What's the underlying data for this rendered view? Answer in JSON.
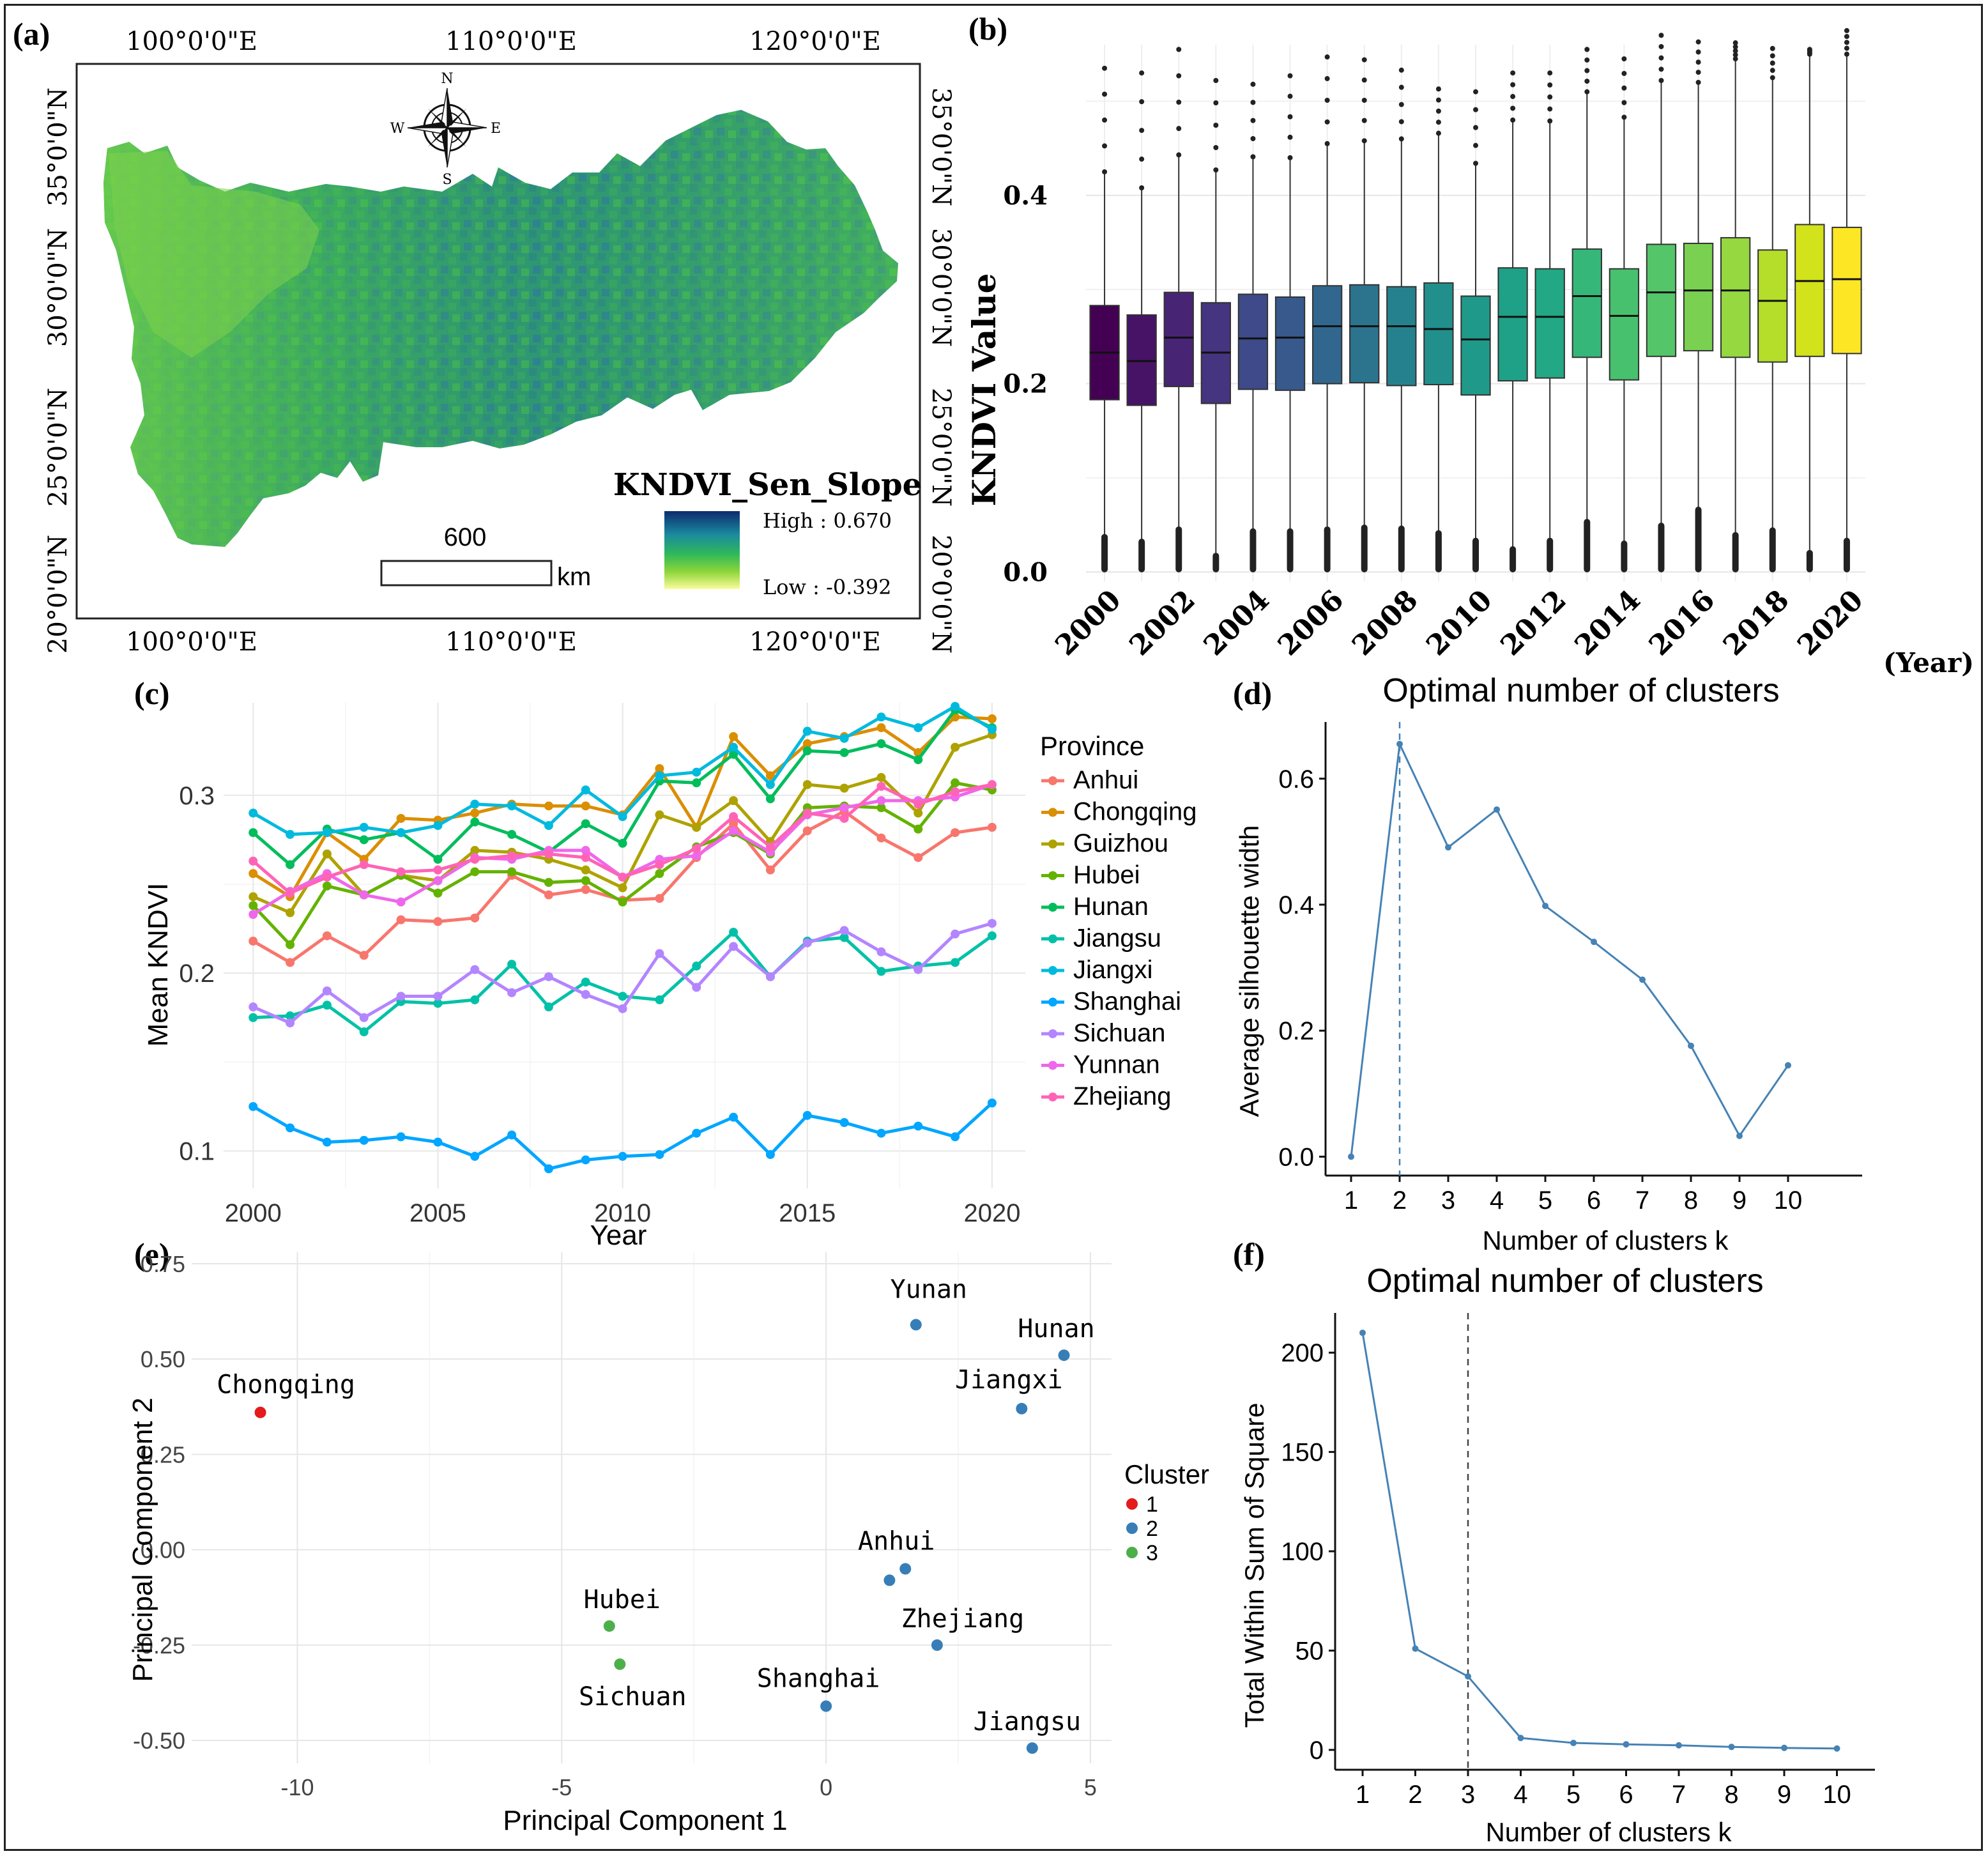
{
  "panels": {
    "a": "(a)",
    "b": "(b)",
    "c": "(c)",
    "d": "(d)",
    "e": "(e)",
    "f": "(f)"
  },
  "map": {
    "lon_labels": [
      "100°0'0\"E",
      "110°0'0\"E",
      "120°0'0\"E"
    ],
    "lat_labels": [
      "35°0'0\"N",
      "30°0'0\"N",
      "25°0'0\"N",
      "20°0'0\"N"
    ],
    "compass": {
      "n": "N",
      "s": "S",
      "e": "E",
      "w": "W"
    },
    "legend_title": "KNDVI_Sen_Slope",
    "legend_high": "High : 0.670",
    "legend_low": "Low : -0.392",
    "scale_value": "600",
    "scale_unit": "km",
    "colors": {
      "high": "#0d2b6e",
      "mid_high": "#1a8a9e",
      "mid": "#2fb85a",
      "mid_low": "#8fd63a",
      "low": "#fbfc9c"
    }
  },
  "chart_data": [
    {
      "id": "b",
      "type": "box",
      "ylabel": "KNDVI Value",
      "xlabel": "(Year)",
      "yticks": [
        "0.0",
        "0.2",
        "0.4"
      ],
      "ylim": [
        -0.01,
        0.56
      ],
      "x_tick_labels": [
        "2000",
        "2002",
        "2004",
        "2006",
        "2008",
        "2010",
        "2012",
        "2014",
        "2016",
        "2018",
        "2020"
      ],
      "years": [
        2000,
        2001,
        2002,
        2003,
        2004,
        2005,
        2006,
        2007,
        2008,
        2009,
        2010,
        2011,
        2012,
        2013,
        2014,
        2015,
        2016,
        2017,
        2018,
        2019,
        2020
      ],
      "q1": [
        0.183,
        0.177,
        0.197,
        0.179,
        0.194,
        0.193,
        0.2,
        0.201,
        0.198,
        0.199,
        0.188,
        0.203,
        0.206,
        0.228,
        0.204,
        0.229,
        0.235,
        0.228,
        0.223,
        0.229,
        0.232
      ],
      "median": [
        0.233,
        0.224,
        0.249,
        0.233,
        0.248,
        0.249,
        0.261,
        0.261,
        0.261,
        0.258,
        0.247,
        0.271,
        0.271,
        0.293,
        0.272,
        0.297,
        0.299,
        0.299,
        0.288,
        0.309,
        0.311
      ],
      "q3": [
        0.283,
        0.273,
        0.297,
        0.286,
        0.295,
        0.292,
        0.304,
        0.305,
        0.303,
        0.307,
        0.293,
        0.323,
        0.322,
        0.343,
        0.322,
        0.348,
        0.349,
        0.355,
        0.342,
        0.369,
        0.366
      ],
      "whisker_low": [
        0.037,
        0.032,
        0.045,
        0.017,
        0.043,
        0.043,
        0.045,
        0.047,
        0.046,
        0.041,
        0.033,
        0.024,
        0.033,
        0.053,
        0.03,
        0.049,
        0.066,
        0.039,
        0.044,
        0.02,
        0.033
      ],
      "whisker_high": [
        0.425,
        0.408,
        0.443,
        0.427,
        0.441,
        0.44,
        0.455,
        0.458,
        0.46,
        0.466,
        0.434,
        0.48,
        0.479,
        0.51,
        0.483,
        0.522,
        0.52,
        0.545,
        0.525,
        0.55,
        0.55
      ],
      "outlier_top": [
        0.535,
        0.53,
        0.555,
        0.522,
        0.518,
        0.527,
        0.547,
        0.544,
        0.533,
        0.513,
        0.51,
        0.53,
        0.53,
        0.555,
        0.545,
        0.57,
        0.563,
        0.562,
        0.556,
        0.555,
        0.575
      ],
      "colors": [
        "#440154",
        "#471366",
        "#482475",
        "#45347f",
        "#3e4a89",
        "#38598c",
        "#31678e",
        "#2c738e",
        "#26818e",
        "#21908d",
        "#1f9a8a",
        "#1fa187",
        "#22a884",
        "#35b779",
        "#48c16e",
        "#54c568",
        "#7ad151",
        "#95d840",
        "#b5de2b",
        "#d2e21b",
        "#fde725"
      ]
    },
    {
      "id": "c",
      "type": "line",
      "xlabel": "Year",
      "ylabel": "Mean KNDVI",
      "xticks": [
        "2000",
        "2005",
        "2010",
        "2015",
        "2020"
      ],
      "yticks": [
        "0.1",
        "0.2",
        "0.3"
      ],
      "xlim": [
        1999.2,
        2020.9
      ],
      "ylim": [
        0.079,
        0.352
      ],
      "legend_title": "Province",
      "x": [
        2000,
        2001,
        2002,
        2003,
        2004,
        2005,
        2006,
        2007,
        2008,
        2009,
        2010,
        2011,
        2012,
        2013,
        2014,
        2015,
        2016,
        2017,
        2018,
        2019,
        2020
      ],
      "series": [
        {
          "name": "Anhui",
          "color": "#F8766D",
          "values": [
            0.218,
            0.206,
            0.221,
            0.21,
            0.23,
            0.229,
            0.231,
            0.255,
            0.244,
            0.247,
            0.241,
            0.242,
            0.265,
            0.284,
            0.258,
            0.28,
            0.291,
            0.276,
            0.265,
            0.279,
            0.282
          ]
        },
        {
          "name": "Chongqing",
          "color": "#DB8E00",
          "values": [
            0.256,
            0.243,
            0.279,
            0.264,
            0.287,
            0.286,
            0.29,
            0.295,
            0.294,
            0.294,
            0.289,
            0.315,
            0.282,
            0.333,
            0.311,
            0.329,
            0.333,
            0.338,
            0.324,
            0.344,
            0.343
          ]
        },
        {
          "name": "Guizhou",
          "color": "#AEA200",
          "values": [
            0.243,
            0.234,
            0.267,
            0.244,
            0.255,
            0.252,
            0.269,
            0.268,
            0.264,
            0.258,
            0.248,
            0.289,
            0.282,
            0.297,
            0.274,
            0.306,
            0.304,
            0.31,
            0.29,
            0.327,
            0.334
          ]
        },
        {
          "name": "Hubei",
          "color": "#64B200",
          "values": [
            0.238,
            0.216,
            0.249,
            0.244,
            0.255,
            0.245,
            0.257,
            0.257,
            0.251,
            0.252,
            0.24,
            0.256,
            0.271,
            0.279,
            0.267,
            0.293,
            0.294,
            0.293,
            0.281,
            0.307,
            0.303
          ]
        },
        {
          "name": "Hunan",
          "color": "#00BD5C",
          "values": [
            0.279,
            0.261,
            0.281,
            0.275,
            0.279,
            0.264,
            0.285,
            0.278,
            0.268,
            0.284,
            0.273,
            0.308,
            0.307,
            0.323,
            0.298,
            0.325,
            0.324,
            0.329,
            0.32,
            0.348,
            0.338
          ]
        },
        {
          "name": "Jiangsu",
          "color": "#00C1A7",
          "values": [
            0.175,
            0.176,
            0.182,
            0.167,
            0.184,
            0.183,
            0.185,
            0.205,
            0.181,
            0.195,
            0.187,
            0.185,
            0.204,
            0.223,
            0.198,
            0.218,
            0.22,
            0.201,
            0.204,
            0.206,
            0.221
          ]
        },
        {
          "name": "Jiangxi",
          "color": "#00BADE",
          "values": [
            0.29,
            0.278,
            0.279,
            0.282,
            0.279,
            0.283,
            0.295,
            0.294,
            0.283,
            0.303,
            0.288,
            0.311,
            0.313,
            0.327,
            0.306,
            0.336,
            0.332,
            0.344,
            0.338,
            0.35,
            0.337
          ]
        },
        {
          "name": "Shanghai",
          "color": "#00A6FF",
          "values": [
            0.125,
            0.113,
            0.105,
            0.106,
            0.108,
            0.105,
            0.097,
            0.109,
            0.09,
            0.095,
            0.097,
            0.098,
            0.11,
            0.119,
            0.098,
            0.12,
            0.116,
            0.11,
            0.114,
            0.108,
            0.127
          ]
        },
        {
          "name": "Sichuan",
          "color": "#B385FF",
          "values": [
            0.181,
            0.172,
            0.19,
            0.175,
            0.187,
            0.187,
            0.202,
            0.189,
            0.198,
            0.188,
            0.18,
            0.211,
            0.192,
            0.215,
            0.198,
            0.217,
            0.224,
            0.212,
            0.202,
            0.222,
            0.228
          ]
        },
        {
          "name": "Yunnan",
          "color": "#EF67EB",
          "values": [
            0.233,
            0.246,
            0.256,
            0.244,
            0.24,
            0.252,
            0.265,
            0.264,
            0.269,
            0.269,
            0.254,
            0.264,
            0.266,
            0.28,
            0.268,
            0.289,
            0.293,
            0.297,
            0.297,
            0.299,
            0.306
          ]
        },
        {
          "name": "Zhejiang",
          "color": "#FF63B6",
          "values": [
            0.263,
            0.245,
            0.254,
            0.261,
            0.257,
            0.258,
            0.264,
            0.266,
            0.267,
            0.265,
            0.254,
            0.261,
            0.27,
            0.288,
            0.271,
            0.29,
            0.287,
            0.305,
            0.295,
            0.302,
            0.306
          ]
        }
      ]
    },
    {
      "id": "d",
      "type": "line",
      "title": "Optimal number of clusters",
      "xlabel": "Number of clusters k",
      "ylabel": "Average silhouette width",
      "x": [
        1,
        2,
        3,
        4,
        5,
        6,
        7,
        8,
        9,
        10
      ],
      "xticks": [
        "1",
        "2",
        "3",
        "4",
        "5",
        "6",
        "7",
        "8",
        "9",
        "10"
      ],
      "yticks": [
        "0.0",
        "0.2",
        "0.4",
        "0.6"
      ],
      "ylim": [
        -0.03,
        0.69
      ],
      "values": [
        0.0,
        0.655,
        0.491,
        0.551,
        0.398,
        0.341,
        0.281,
        0.176,
        0.033,
        0.145
      ],
      "optimal_k": 2,
      "color": "#4682b4"
    },
    {
      "id": "e",
      "type": "scatter",
      "xlabel": "Principal Component 1",
      "ylabel": "Principal Component 2",
      "xticks": [
        "-10",
        "-5",
        "0",
        "5"
      ],
      "yticks": [
        "0.75",
        "0.50",
        "0.25",
        "0.00",
        "-0.25",
        "-0.50"
      ],
      "xlim": [
        -12.0,
        5.4
      ],
      "ylim": [
        -0.56,
        0.78
      ],
      "legend_title": "Cluster",
      "clusters": [
        {
          "label": "1",
          "color": "#E41A1C"
        },
        {
          "label": "2",
          "color": "#377EB8"
        },
        {
          "label": "3",
          "color": "#4DAF4A"
        }
      ],
      "points": [
        {
          "name": "Chongqing",
          "x": -10.7,
          "y": 0.36,
          "cluster": 1
        },
        {
          "name": "Yunan",
          "x": 1.7,
          "y": 0.59,
          "cluster": 2
        },
        {
          "name": "Hunan",
          "x": 4.5,
          "y": 0.51,
          "cluster": 2
        },
        {
          "name": "Jiangxi",
          "x": 3.7,
          "y": 0.37,
          "cluster": 2
        },
        {
          "name": "Anhui",
          "x": 1.5,
          "y": -0.05,
          "cluster": 2
        },
        {
          "name": "",
          "x": 1.2,
          "y": -0.08,
          "cluster": 2
        },
        {
          "name": "Zhejiang",
          "x": 2.1,
          "y": -0.25,
          "cluster": 2
        },
        {
          "name": "Shanghai",
          "x": 0.0,
          "y": -0.41,
          "cluster": 2
        },
        {
          "name": "Jiangsu",
          "x": 3.9,
          "y": -0.52,
          "cluster": 2
        },
        {
          "name": "Hubei",
          "x": -4.1,
          "y": -0.2,
          "cluster": 3
        },
        {
          "name": "Sichuan",
          "x": -3.9,
          "y": -0.3,
          "cluster": 3
        }
      ]
    },
    {
      "id": "f",
      "type": "line",
      "title": "Optimal number of clusters",
      "xlabel": "Number of clusters k",
      "ylabel": "Total Within Sum of Square",
      "x": [
        1,
        2,
        3,
        4,
        5,
        6,
        7,
        8,
        9,
        10
      ],
      "xticks": [
        "1",
        "2",
        "3",
        "4",
        "5",
        "6",
        "7",
        "8",
        "9",
        "10"
      ],
      "yticks": [
        "0",
        "50",
        "100",
        "150",
        "200"
      ],
      "ylim": [
        -10,
        220
      ],
      "values": [
        210,
        51,
        37,
        6,
        3.5,
        2.8,
        2.3,
        1.5,
        1.0,
        0.7
      ],
      "optimal_k": 3,
      "color": "#4682b4"
    }
  ]
}
